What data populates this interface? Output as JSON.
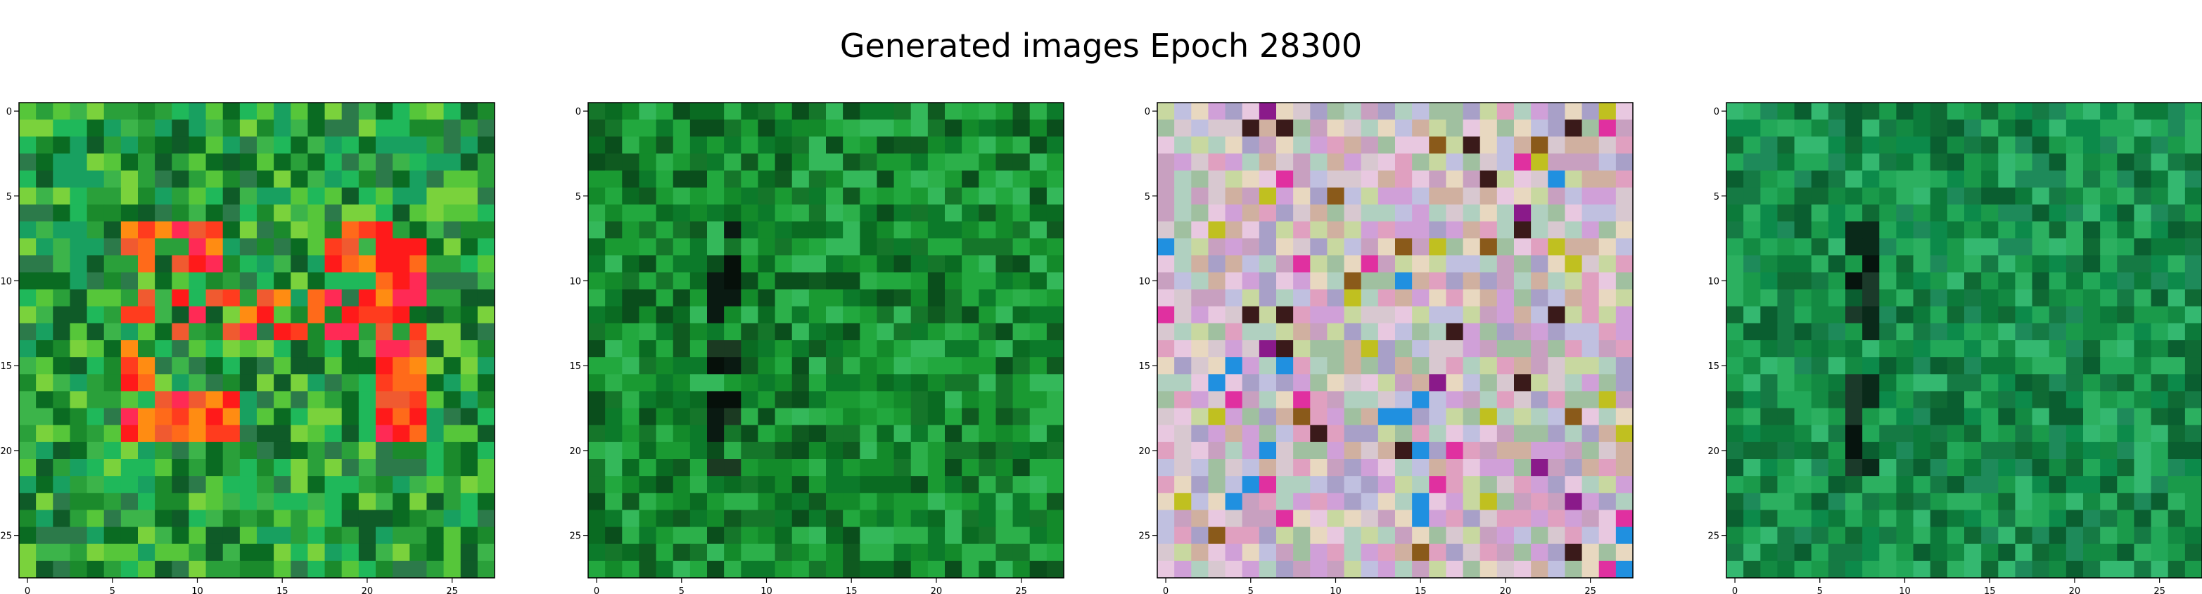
{
  "chart_data": {
    "title": "Generated images Epoch 28300",
    "type": "heatmap",
    "panels": [
      {
        "name": "",
        "rows": 28,
        "cols": 28,
        "xticks": [
          0,
          5,
          10,
          15,
          20,
          25
        ],
        "yticks": [
          0,
          5,
          10,
          15,
          20,
          25
        ],
        "palette": [
          "#0a6b22",
          "#1b8a2c",
          "#2aa03a",
          "#3cb44a",
          "#1fb85a",
          "#0f5b28",
          "#18a060",
          "#56c63a",
          "#7ad23c",
          "#2c7a4a"
        ],
        "feature": "ring",
        "accent": [
          "#ff1a1a",
          "#ff3c1e",
          "#ff6a1a",
          "#ff8c12",
          "#ff2a55",
          "#f05a30"
        ]
      },
      {
        "name": "",
        "rows": 28,
        "cols": 28,
        "xticks": [
          0,
          5,
          10,
          15,
          20,
          25
        ],
        "yticks": [
          0,
          5,
          10,
          15,
          20,
          25
        ],
        "palette": [
          "#0a6b22",
          "#138a2a",
          "#1a9a32",
          "#0f5a20",
          "#22a83e",
          "#0c7a2a",
          "#2cb04a",
          "#15762a",
          "#0a4e1c",
          "#34b85a"
        ],
        "feature": "stripe",
        "accent": [
          "#0a1a12",
          "#06100a",
          "#1b3a22"
        ]
      },
      {
        "name": "",
        "rows": 28,
        "cols": 28,
        "xticks": [
          0,
          5,
          10,
          15,
          20,
          25
        ],
        "yticks": [
          0,
          5,
          10,
          15,
          20,
          25
        ],
        "palette": [
          "#d8c8d0",
          "#e8d8c0",
          "#c8a0c0",
          "#a0c0a0",
          "#d0b0a0",
          "#e0a0c0",
          "#c0c0e0",
          "#b0d0c0",
          "#e8c8e0",
          "#c8d8a0",
          "#d0a0d8",
          "#a8a0c8"
        ],
        "feature": "noise",
        "accent": [
          "#8a1a8a",
          "#3a1a1a",
          "#e030a0",
          "#2090e0",
          "#c0c020",
          "#8a5a1a"
        ]
      },
      {
        "name": "",
        "rows": 28,
        "cols": 28,
        "xticks": [
          0,
          5,
          10,
          15,
          20,
          25
        ],
        "yticks": [
          0,
          5,
          10,
          15,
          20,
          25
        ],
        "palette": [
          "#0c7a3a",
          "#138a42",
          "#1a9a4a",
          "#0f6a34",
          "#22a858",
          "#0c8a4a",
          "#2cb060",
          "#157a44",
          "#0a5e30",
          "#34b870",
          "#1e8a5a"
        ],
        "feature": "stripe",
        "accent": [
          "#0a2a1a",
          "#06140e",
          "#1b3a2a"
        ]
      }
    ]
  }
}
